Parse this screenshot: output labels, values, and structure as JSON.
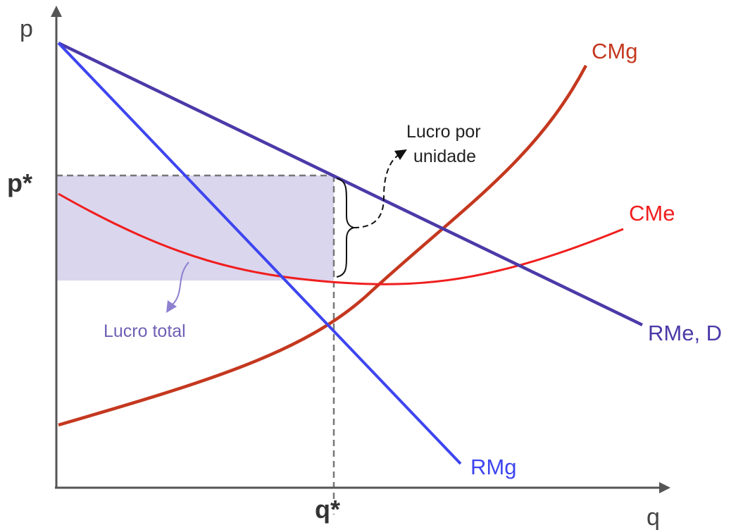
{
  "axes": {
    "y_label": "p",
    "x_label": "q"
  },
  "equilibrium": {
    "price_label": "p*",
    "quantity_label": "q*"
  },
  "curves": {
    "demand": {
      "label": "RMe, D",
      "color": "#4b3aa8"
    },
    "marginal_revenue": {
      "label": "RMg",
      "color": "#3d45f0"
    },
    "marginal_cost": {
      "label": "CMg",
      "color": "#c4381f"
    },
    "average_cost": {
      "label": "CMe",
      "color": "#f01e1e"
    }
  },
  "annotations": {
    "profit_per_unit_line1": "Lucro por",
    "profit_per_unit_line2": "unidade",
    "total_profit": "Lucro total"
  },
  "colors": {
    "axis": "#555555",
    "guide": "#777777",
    "profit_area": "#dad6ee",
    "total_profit_arrow": "#8c80cf"
  }
}
